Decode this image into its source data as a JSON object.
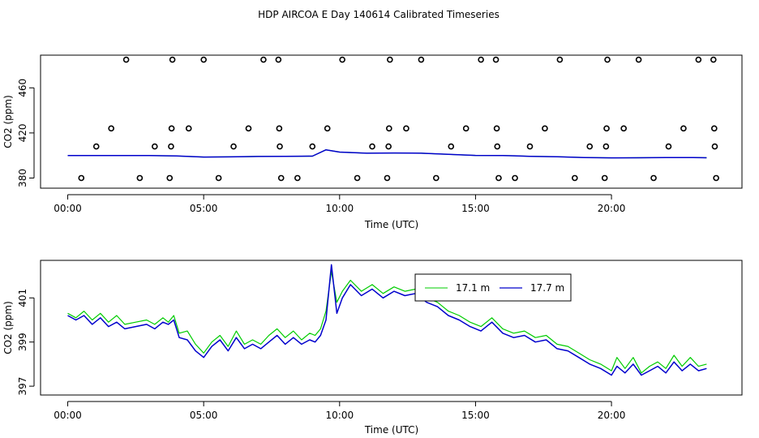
{
  "figure_title": "HDP AIRCOA E  Day 140614  Calibrated Timeseries",
  "colors": {
    "green": "#00cc00",
    "blue": "#0000cc",
    "axis": "#000000",
    "marker": "#000000"
  },
  "chart_data": [
    {
      "type": "scatter+line",
      "title": "",
      "xlabel": "Time (UTC)",
      "ylabel": "CO2 (ppm)",
      "xlim": [
        -1.0,
        24.8
      ],
      "ylim": [
        371,
        489
      ],
      "xticks": [
        {
          "value": 0,
          "label": "00:00"
        },
        {
          "value": 5,
          "label": "05:00"
        },
        {
          "value": 10,
          "label": "10:00"
        },
        {
          "value": 15,
          "label": "15:00"
        },
        {
          "value": 20,
          "label": "20:00"
        }
      ],
      "yticks": [
        {
          "value": 380,
          "label": "380"
        },
        {
          "value": 420,
          "label": "420"
        },
        {
          "value": 460,
          "label": "460"
        }
      ],
      "calibration_points": [
        {
          "x": 0.5,
          "y": 380
        },
        {
          "x": 1.05,
          "y": 408
        },
        {
          "x": 1.6,
          "y": 424
        },
        {
          "x": 2.15,
          "y": 485
        },
        {
          "x": 2.65,
          "y": 380
        },
        {
          "x": 3.2,
          "y": 408
        },
        {
          "x": 3.75,
          "y": 380
        },
        {
          "x": 3.8,
          "y": 408
        },
        {
          "x": 3.82,
          "y": 424
        },
        {
          "x": 3.85,
          "y": 485
        },
        {
          "x": 4.45,
          "y": 424
        },
        {
          "x": 5.0,
          "y": 485
        },
        {
          "x": 5.55,
          "y": 380
        },
        {
          "x": 6.1,
          "y": 408
        },
        {
          "x": 6.65,
          "y": 424
        },
        {
          "x": 7.2,
          "y": 485
        },
        {
          "x": 7.75,
          "y": 485
        },
        {
          "x": 7.78,
          "y": 424
        },
        {
          "x": 7.8,
          "y": 408
        },
        {
          "x": 7.85,
          "y": 380
        },
        {
          "x": 8.45,
          "y": 380
        },
        {
          "x": 9.0,
          "y": 408
        },
        {
          "x": 9.55,
          "y": 424
        },
        {
          "x": 10.1,
          "y": 485
        },
        {
          "x": 10.65,
          "y": 380
        },
        {
          "x": 11.2,
          "y": 408
        },
        {
          "x": 11.75,
          "y": 380
        },
        {
          "x": 11.8,
          "y": 408
        },
        {
          "x": 11.82,
          "y": 424
        },
        {
          "x": 11.85,
          "y": 485
        },
        {
          "x": 12.45,
          "y": 424
        },
        {
          "x": 13.0,
          "y": 485
        },
        {
          "x": 13.55,
          "y": 380
        },
        {
          "x": 14.1,
          "y": 408
        },
        {
          "x": 14.65,
          "y": 424
        },
        {
          "x": 15.2,
          "y": 485
        },
        {
          "x": 15.75,
          "y": 485
        },
        {
          "x": 15.78,
          "y": 424
        },
        {
          "x": 15.8,
          "y": 408
        },
        {
          "x": 15.85,
          "y": 380
        },
        {
          "x": 16.45,
          "y": 380
        },
        {
          "x": 17.0,
          "y": 408
        },
        {
          "x": 17.55,
          "y": 424
        },
        {
          "x": 18.1,
          "y": 485
        },
        {
          "x": 18.65,
          "y": 380
        },
        {
          "x": 19.2,
          "y": 408
        },
        {
          "x": 19.75,
          "y": 380
        },
        {
          "x": 19.8,
          "y": 408
        },
        {
          "x": 19.82,
          "y": 424
        },
        {
          "x": 19.85,
          "y": 485
        },
        {
          "x": 20.45,
          "y": 424
        },
        {
          "x": 21.0,
          "y": 485
        },
        {
          "x": 21.55,
          "y": 380
        },
        {
          "x": 22.1,
          "y": 408
        },
        {
          "x": 22.65,
          "y": 424
        },
        {
          "x": 23.2,
          "y": 485
        },
        {
          "x": 23.75,
          "y": 485
        },
        {
          "x": 23.78,
          "y": 424
        },
        {
          "x": 23.8,
          "y": 408
        },
        {
          "x": 23.85,
          "y": 380
        }
      ],
      "series": [
        {
          "name": "17.1 m",
          "color": "#00cc00",
          "x": [
            0,
            1,
            2,
            3,
            4,
            5,
            6,
            7,
            8,
            9,
            9.5,
            10,
            11,
            12,
            13,
            14,
            15,
            16,
            17,
            18,
            19,
            20,
            21,
            22,
            23,
            23.5
          ],
          "y": [
            400,
            400,
            399.9,
            399.9,
            399.6,
            398.6,
            398.8,
            399.1,
            399.2,
            399.4,
            405,
            403,
            402,
            402.2,
            402,
            401,
            400.1,
            400,
            399.3,
            398.9,
            398.2,
            397.9,
            398.0,
            398.1,
            398.2,
            398.0
          ]
        },
        {
          "name": "17.7 m",
          "color": "#0000cc",
          "x": [
            0,
            1,
            2,
            3,
            4,
            5,
            6,
            7,
            8,
            9,
            9.5,
            10,
            11,
            12,
            13,
            14,
            15,
            16,
            17,
            18,
            19,
            20,
            21,
            22,
            23,
            23.5
          ],
          "y": [
            400,
            400,
            399.9,
            399.9,
            399.6,
            398.6,
            398.8,
            399.1,
            399.2,
            399.4,
            405,
            403,
            402,
            402.2,
            402,
            401,
            400.1,
            400,
            399.3,
            398.9,
            398.2,
            397.9,
            398.0,
            398.1,
            398.2,
            398.0
          ]
        }
      ]
    },
    {
      "type": "line",
      "title": "",
      "xlabel": "Time (UTC)",
      "ylabel": "CO2 (ppm)",
      "xlim": [
        -1.0,
        24.8
      ],
      "ylim": [
        396.6,
        402.7
      ],
      "xticks": [
        {
          "value": 0,
          "label": "00:00"
        },
        {
          "value": 5,
          "label": "05:00"
        },
        {
          "value": 10,
          "label": "10:00"
        },
        {
          "value": 15,
          "label": "15:00"
        },
        {
          "value": 20,
          "label": "20:00"
        }
      ],
      "yticks": [
        {
          "value": 397,
          "label": "397"
        },
        {
          "value": 399,
          "label": "399"
        },
        {
          "value": 401,
          "label": "401"
        }
      ],
      "legend": {
        "position": "top-right",
        "entries": [
          "17.1 m",
          "17.7 m"
        ]
      },
      "series": [
        {
          "name": "17.1 m",
          "color": "#00cc00",
          "x": [
            0,
            0.3,
            0.6,
            0.9,
            1.2,
            1.5,
            1.8,
            2.1,
            2.5,
            2.9,
            3.2,
            3.5,
            3.7,
            3.9,
            4.1,
            4.4,
            4.7,
            5.0,
            5.3,
            5.6,
            5.9,
            6.2,
            6.5,
            6.8,
            7.1,
            7.4,
            7.7,
            8.0,
            8.3,
            8.6,
            8.9,
            9.1,
            9.3,
            9.5,
            9.7,
            9.9,
            10.1,
            10.4,
            10.8,
            11.2,
            11.6,
            12.0,
            12.4,
            12.8,
            13.2,
            13.6,
            14.0,
            14.4,
            14.8,
            15.2,
            15.6,
            16.0,
            16.4,
            16.8,
            17.2,
            17.6,
            18.0,
            18.4,
            18.8,
            19.2,
            19.6,
            20.0,
            20.2,
            20.5,
            20.8,
            21.1,
            21.4,
            21.7,
            22.0,
            22.3,
            22.6,
            22.9,
            23.2,
            23.5
          ],
          "y": [
            400.3,
            400.1,
            400.4,
            400.0,
            400.3,
            399.9,
            400.2,
            399.8,
            399.9,
            400.0,
            399.8,
            400.1,
            399.9,
            400.2,
            399.4,
            399.5,
            398.9,
            398.5,
            399.0,
            399.3,
            398.8,
            399.5,
            398.9,
            399.1,
            398.9,
            399.3,
            399.6,
            399.2,
            399.5,
            399.1,
            399.4,
            399.3,
            399.6,
            400.4,
            402.2,
            400.8,
            401.3,
            401.8,
            401.3,
            401.6,
            401.2,
            401.5,
            401.3,
            401.4,
            401.0,
            400.8,
            400.4,
            400.2,
            399.9,
            399.7,
            400.1,
            399.6,
            399.4,
            399.5,
            399.2,
            399.3,
            398.9,
            398.8,
            398.5,
            398.2,
            398.0,
            397.7,
            398.3,
            397.8,
            398.3,
            397.6,
            397.9,
            398.1,
            397.8,
            398.4,
            397.9,
            398.3,
            397.9,
            398.0
          ]
        },
        {
          "name": "17.7 m",
          "color": "#0000cc",
          "x": [
            0,
            0.3,
            0.6,
            0.9,
            1.2,
            1.5,
            1.8,
            2.1,
            2.5,
            2.9,
            3.2,
            3.5,
            3.7,
            3.9,
            4.1,
            4.4,
            4.7,
            5.0,
            5.3,
            5.6,
            5.9,
            6.2,
            6.5,
            6.8,
            7.1,
            7.4,
            7.7,
            8.0,
            8.3,
            8.6,
            8.9,
            9.1,
            9.3,
            9.5,
            9.7,
            9.9,
            10.1,
            10.4,
            10.8,
            11.2,
            11.6,
            12.0,
            12.4,
            12.8,
            13.2,
            13.6,
            14.0,
            14.4,
            14.8,
            15.2,
            15.6,
            16.0,
            16.4,
            16.8,
            17.2,
            17.6,
            18.0,
            18.4,
            18.8,
            19.2,
            19.6,
            20.0,
            20.2,
            20.5,
            20.8,
            21.1,
            21.4,
            21.7,
            22.0,
            22.3,
            22.6,
            22.9,
            23.2,
            23.5
          ],
          "y": [
            400.2,
            400.0,
            400.2,
            399.8,
            400.1,
            399.7,
            399.9,
            399.6,
            399.7,
            399.8,
            399.6,
            399.9,
            399.8,
            400.0,
            399.2,
            399.1,
            398.6,
            398.3,
            398.8,
            399.1,
            398.6,
            399.2,
            398.7,
            398.9,
            398.7,
            399.0,
            399.3,
            398.9,
            399.2,
            398.9,
            399.1,
            399.0,
            399.3,
            400.0,
            402.5,
            400.3,
            401.0,
            401.6,
            401.1,
            401.4,
            401.0,
            401.3,
            401.1,
            401.2,
            400.8,
            400.6,
            400.2,
            400.0,
            399.7,
            399.5,
            399.9,
            399.4,
            399.2,
            399.3,
            399.0,
            399.1,
            398.7,
            398.6,
            398.3,
            398.0,
            397.8,
            397.5,
            397.9,
            397.6,
            398.0,
            397.5,
            397.7,
            397.9,
            397.6,
            398.1,
            397.7,
            398.0,
            397.7,
            397.8
          ]
        }
      ]
    }
  ]
}
